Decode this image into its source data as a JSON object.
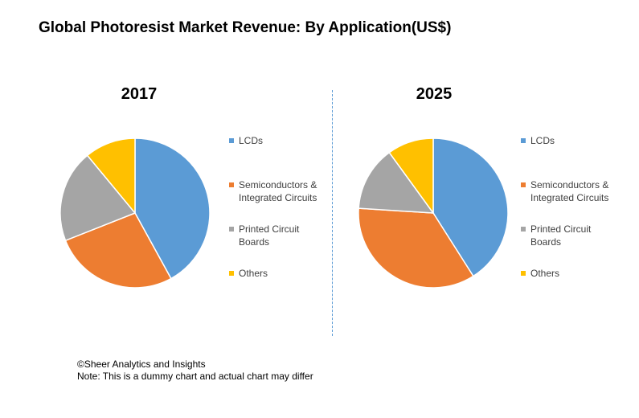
{
  "title": "Global Photoresist Market Revenue: By Application(US$)",
  "colors": {
    "LCDs": "#5b9bd5",
    "Semiconductors & Integrated Circuits": "#ed7d31",
    "Printed Circuit Boards": "#a5a5a5",
    "Others": "#ffc000"
  },
  "chart_data": [
    {
      "type": "pie",
      "title": "2017",
      "labels": [
        "LCDs",
        "Semiconductors & Integrated Circuits",
        "Printed Circuit Boards",
        "Others"
      ],
      "values": [
        42,
        27,
        20,
        11
      ],
      "legend": "right"
    },
    {
      "type": "pie",
      "title": "2025",
      "labels": [
        "LCDs",
        "Semiconductors & Integrated Circuits",
        "Printed Circuit Boards",
        "Others"
      ],
      "values": [
        41,
        35,
        14,
        10
      ],
      "legend": "right"
    }
  ],
  "legend_labels": {
    "lcds": "LCDs",
    "semiconductors": "Semiconductors & Integrated Circuits",
    "pcb": "Printed Circuit Boards",
    "others": "Others"
  },
  "footer": {
    "copyright": "©Sheer Analytics and Insights",
    "note": "Note: This is a dummy chart and actual chart may differ"
  }
}
